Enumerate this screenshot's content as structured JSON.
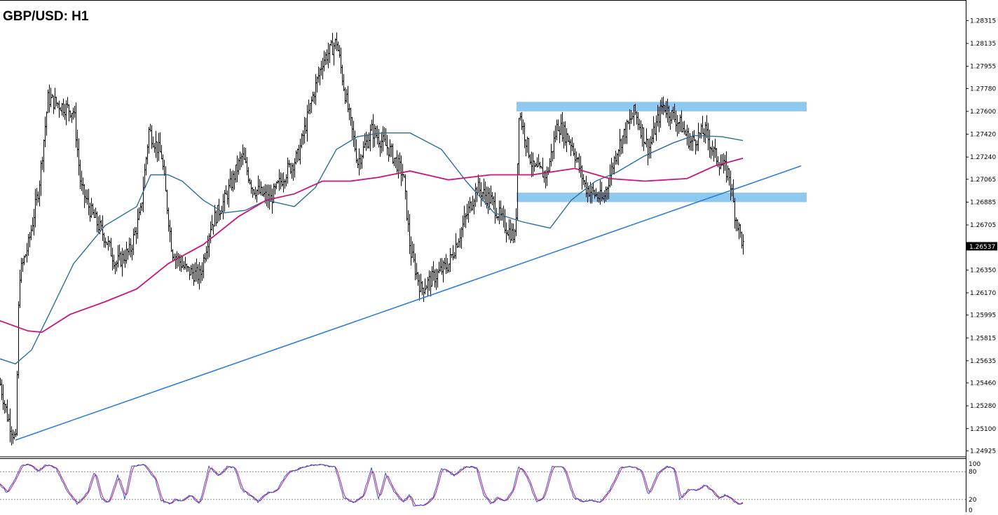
{
  "header": {
    "title": "GBP/USD: H1"
  },
  "chart_data": {
    "type": "candlestick",
    "symbol": "GBP/USD",
    "timeframe": "H1",
    "title": "GBP/USD: H1",
    "price_axis": {
      "ylim": [
        1.249,
        1.284
      ],
      "ticks": [
        "1.28315",
        "1.28135",
        "1.27955",
        "1.27780",
        "1.27600",
        "1.27420",
        "1.27240",
        "1.27065",
        "1.26885",
        "1.26705",
        "1.26350",
        "1.26170",
        "1.25995",
        "1.25815",
        "1.25635",
        "1.25460",
        "1.25280",
        "1.25100",
        "1.24925"
      ],
      "current_price": "1.26537"
    },
    "price_path": [
      [
        0,
        1.2545
      ],
      [
        10,
        1.252
      ],
      [
        22,
        1.25
      ],
      [
        27,
        1.263
      ],
      [
        40,
        1.2655
      ],
      [
        55,
        1.27
      ],
      [
        68,
        1.277
      ],
      [
        85,
        1.2765
      ],
      [
        105,
        1.276
      ],
      [
        115,
        1.27
      ],
      [
        130,
        1.268
      ],
      [
        150,
        1.266
      ],
      [
        165,
        1.264
      ],
      [
        185,
        1.265
      ],
      [
        200,
        1.268
      ],
      [
        212,
        1.2745
      ],
      [
        230,
        1.2725
      ],
      [
        245,
        1.265
      ],
      [
        265,
        1.2635
      ],
      [
        285,
        1.263
      ],
      [
        300,
        1.267
      ],
      [
        320,
        1.269
      ],
      [
        345,
        1.2725
      ],
      [
        360,
        1.27
      ],
      [
        385,
        1.269
      ],
      [
        405,
        1.271
      ],
      [
        425,
        1.2725
      ],
      [
        445,
        1.277
      ],
      [
        460,
        1.28
      ],
      [
        480,
        1.2815
      ],
      [
        490,
        1.278
      ],
      [
        510,
        1.272
      ],
      [
        530,
        1.2745
      ],
      [
        555,
        1.273
      ],
      [
        575,
        1.271
      ],
      [
        585,
        1.265
      ],
      [
        600,
        1.262
      ],
      [
        620,
        1.263
      ],
      [
        640,
        1.264
      ],
      [
        660,
        1.267
      ],
      [
        680,
        1.27
      ],
      [
        700,
        1.269
      ],
      [
        720,
        1.267
      ],
      [
        735,
        1.266
      ],
      [
        740,
        1.276
      ],
      [
        760,
        1.2715
      ],
      [
        780,
        1.271
      ],
      [
        795,
        1.275
      ],
      [
        815,
        1.2735
      ],
      [
        835,
        1.27
      ],
      [
        860,
        1.269
      ],
      [
        880,
        1.273
      ],
      [
        905,
        1.276
      ],
      [
        925,
        1.273
      ],
      [
        945,
        1.2765
      ],
      [
        970,
        1.275
      ],
      [
        985,
        1.2735
      ],
      [
        1005,
        1.2745
      ],
      [
        1020,
        1.2725
      ],
      [
        1040,
        1.271
      ],
      [
        1048,
        1.268
      ],
      [
        1060,
        1.2654
      ]
    ],
    "moving_averages": [
      {
        "color": "#2a6f9a",
        "points": [
          [
            0,
            1.2565
          ],
          [
            22,
            1.2561
          ],
          [
            45,
            1.2572
          ],
          [
            70,
            1.26
          ],
          [
            105,
            1.264
          ],
          [
            150,
            1.267
          ],
          [
            195,
            1.2685
          ],
          [
            215,
            1.271
          ],
          [
            240,
            1.271
          ],
          [
            260,
            1.2705
          ],
          [
            290,
            1.269
          ],
          [
            320,
            1.268
          ],
          [
            350,
            1.2682
          ],
          [
            380,
            1.269
          ],
          [
            420,
            1.2685
          ],
          [
            450,
            1.27
          ],
          [
            480,
            1.273
          ],
          [
            510,
            1.274
          ],
          [
            545,
            1.2743
          ],
          [
            585,
            1.2743
          ],
          [
            630,
            1.273
          ],
          [
            665,
            1.2705
          ],
          [
            705,
            1.268
          ],
          [
            745,
            1.2673
          ],
          [
            785,
            1.2668
          ],
          [
            815,
            1.269
          ],
          [
            850,
            1.2705
          ],
          [
            880,
            1.2712
          ],
          [
            920,
            1.2725
          ],
          [
            960,
            1.2735
          ],
          [
            990,
            1.2741
          ],
          [
            1030,
            1.274
          ],
          [
            1060,
            1.2737
          ]
        ]
      },
      {
        "color": "#c8157c",
        "points": [
          [
            0,
            1.2595
          ],
          [
            40,
            1.2587
          ],
          [
            60,
            1.2586
          ],
          [
            100,
            1.26
          ],
          [
            150,
            1.261
          ],
          [
            195,
            1.262
          ],
          [
            240,
            1.264
          ],
          [
            290,
            1.2655
          ],
          [
            340,
            1.2677
          ],
          [
            380,
            1.269
          ],
          [
            420,
            1.2695
          ],
          [
            460,
            1.2705
          ],
          [
            500,
            1.2705
          ],
          [
            540,
            1.2708
          ],
          [
            585,
            1.2713
          ],
          [
            640,
            1.2706
          ],
          [
            700,
            1.271
          ],
          [
            760,
            1.271
          ],
          [
            820,
            1.2715
          ],
          [
            870,
            1.2707
          ],
          [
            920,
            1.2705
          ],
          [
            980,
            1.2707
          ],
          [
            1020,
            1.2717
          ],
          [
            1060,
            1.2723
          ]
        ]
      }
    ],
    "annotations": {
      "zones": [
        {
          "x1": 737,
          "x2": 1151,
          "y_top": 1.27675,
          "y_bottom": 1.276,
          "color": "#8ecaf0"
        },
        {
          "x1": 737,
          "x2": 1151,
          "y_top": 1.2696,
          "y_bottom": 1.26885,
          "color": "#8ecaf0"
        }
      ],
      "trendline": {
        "color": "#2f7fd8",
        "from": [
          22,
          1.2501
        ],
        "to": [
          1143,
          1.2717
        ]
      }
    },
    "oscillator": {
      "type": "stochastic",
      "ticks": [
        "100",
        "80",
        "20",
        "0"
      ],
      "levels": [
        80,
        20
      ],
      "main_color": "#3355cc",
      "signal_color": "#c8157c",
      "path": [
        [
          0,
          52
        ],
        [
          10,
          35
        ],
        [
          20,
          60
        ],
        [
          30,
          92
        ],
        [
          40,
          95
        ],
        [
          55,
          82
        ],
        [
          65,
          96
        ],
        [
          80,
          88
        ],
        [
          95,
          40
        ],
        [
          110,
          10
        ],
        [
          125,
          35
        ],
        [
          135,
          82
        ],
        [
          145,
          20
        ],
        [
          155,
          14
        ],
        [
          168,
          72
        ],
        [
          178,
          22
        ],
        [
          188,
          92
        ],
        [
          205,
          95
        ],
        [
          222,
          62
        ],
        [
          230,
          18
        ],
        [
          242,
          10
        ],
        [
          250,
          22
        ],
        [
          258,
          15
        ],
        [
          270,
          30
        ],
        [
          285,
          12
        ],
        [
          298,
          90
        ],
        [
          312,
          72
        ],
        [
          325,
          92
        ],
        [
          335,
          88
        ],
        [
          345,
          40
        ],
        [
          358,
          28
        ],
        [
          368,
          15
        ],
        [
          378,
          32
        ],
        [
          395,
          40
        ],
        [
          410,
          78
        ],
        [
          425,
          85
        ],
        [
          440,
          94
        ],
        [
          460,
          95
        ],
        [
          478,
          90
        ],
        [
          490,
          25
        ],
        [
          505,
          12
        ],
        [
          518,
          28
        ],
        [
          530,
          88
        ],
        [
          540,
          20
        ],
        [
          550,
          75
        ],
        [
          563,
          35
        ],
        [
          575,
          15
        ],
        [
          585,
          30
        ],
        [
          590,
          5
        ],
        [
          605,
          8
        ],
        [
          618,
          25
        ],
        [
          630,
          88
        ],
        [
          648,
          72
        ],
        [
          665,
          92
        ],
        [
          680,
          88
        ],
        [
          690,
          30
        ],
        [
          700,
          10
        ],
        [
          710,
          25
        ],
        [
          720,
          15
        ],
        [
          732,
          40
        ],
        [
          740,
          92
        ],
        [
          752,
          70
        ],
        [
          765,
          15
        ],
        [
          775,
          22
        ],
        [
          788,
          92
        ],
        [
          805,
          88
        ],
        [
          818,
          25
        ],
        [
          832,
          15
        ],
        [
          845,
          18
        ],
        [
          855,
          12
        ],
        [
          870,
          40
        ],
        [
          885,
          88
        ],
        [
          900,
          92
        ],
        [
          915,
          82
        ],
        [
          925,
          30
        ],
        [
          938,
          75
        ],
        [
          950,
          92
        ],
        [
          962,
          85
        ],
        [
          970,
          20
        ],
        [
          982,
          42
        ],
        [
          995,
          40
        ],
        [
          1005,
          52
        ],
        [
          1015,
          40
        ],
        [
          1025,
          22
        ],
        [
          1035,
          30
        ],
        [
          1045,
          18
        ],
        [
          1055,
          8
        ],
        [
          1060,
          14
        ]
      ]
    }
  }
}
